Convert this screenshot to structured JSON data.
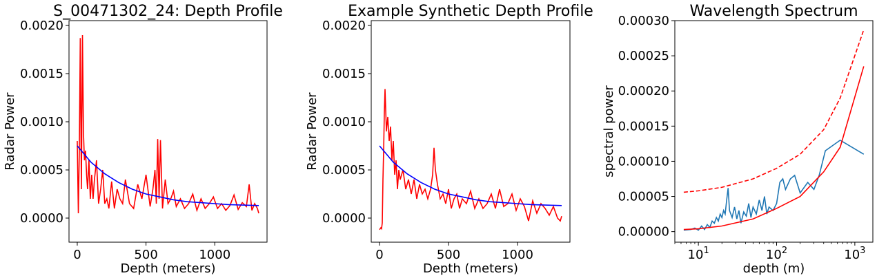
{
  "chart_data": [
    {
      "type": "line",
      "title": "S_00471302_24: Depth Profile",
      "xlabel": "Depth (meters)",
      "ylabel": "Radar Power",
      "xlim": [
        -60,
        1380
      ],
      "ylim": [
        -0.00025,
        0.00205
      ],
      "xticks": [
        0,
        500,
        1000
      ],
      "yticks": [
        0.0,
        0.0005,
        0.001,
        0.0015,
        0.002
      ],
      "ytick_labels": [
        "0.0000",
        "0.0005",
        "0.0010",
        "0.0015",
        "0.0020"
      ],
      "grid": false,
      "series": [
        {
          "color": "#ff0000",
          "x": [
            0,
            8,
            15,
            22,
            30,
            38,
            45,
            52,
            60,
            68,
            75,
            85,
            95,
            105,
            115,
            125,
            140,
            155,
            170,
            185,
            200,
            215,
            230,
            250,
            270,
            290,
            310,
            330,
            350,
            380,
            410,
            440,
            470,
            500,
            530,
            550,
            565,
            575,
            585,
            595,
            605,
            620,
            640,
            660,
            680,
            700,
            720,
            750,
            780,
            810,
            840,
            870,
            900,
            930,
            960,
            990,
            1020,
            1050,
            1080,
            1110,
            1140,
            1170,
            1200,
            1230,
            1250,
            1270,
            1290,
            1310,
            1320
          ],
          "y": [
            0.0008,
            5e-05,
            0.0007,
            0.00187,
            0.0003,
            0.0019,
            0.0009,
            0.0006,
            0.0007,
            0.00045,
            0.0003,
            0.0006,
            0.0002,
            0.00045,
            0.0002,
            0.0004,
            0.0006,
            0.00015,
            0.0003,
            0.0005,
            0.00015,
            0.0002,
            0.0001,
            0.00038,
            0.0001,
            0.0003,
            0.0002,
            0.00015,
            0.0004,
            0.00015,
            0.0001,
            0.00035,
            0.0002,
            0.00045,
            0.00012,
            0.0003,
            0.0005,
            0.00015,
            0.00082,
            0.0002,
            0.00081,
            0.0001,
            0.0004,
            0.00015,
            0.0002,
            0.00028,
            0.00012,
            0.0002,
            0.0001,
            0.00015,
            0.00025,
            8e-05,
            0.0002,
            0.0001,
            0.00015,
            0.00022,
            0.0001,
            0.00015,
            8e-05,
            0.00013,
            0.00024,
            9e-05,
            0.00016,
            0.00012,
            0.00035,
            8e-05,
            0.00015,
            0.0001,
            5e-05
          ]
        },
        {
          "color": "#0000ff",
          "x": [
            0,
            100,
            200,
            300,
            400,
            500,
            600,
            700,
            800,
            900,
            1000,
            1100,
            1200,
            1320
          ],
          "y": [
            0.00075,
            0.00058,
            0.00046,
            0.00037,
            0.0003,
            0.00025,
            0.00022,
            0.00019,
            0.00017,
            0.00016,
            0.00015,
            0.00014,
            0.000135,
            0.00013
          ]
        }
      ]
    },
    {
      "type": "line",
      "title": "Example Synthetic Depth Profile",
      "xlabel": "Depth (meters)",
      "ylabel": "Radar Power",
      "xlim": [
        -60,
        1380
      ],
      "ylim": [
        -0.00025,
        0.00205
      ],
      "xticks": [
        0,
        500,
        1000
      ],
      "yticks": [
        0.0,
        0.0005,
        0.001,
        0.0015,
        0.002
      ],
      "ytick_labels": [
        "0.0000",
        "0.0005",
        "0.0010",
        "0.0015",
        "0.0020"
      ],
      "grid": false,
      "series": [
        {
          "color": "#ff0000",
          "x": [
            0,
            10,
            15,
            20,
            25,
            30,
            35,
            40,
            50,
            60,
            70,
            80,
            90,
            100,
            110,
            120,
            130,
            140,
            150,
            170,
            190,
            210,
            230,
            250,
            270,
            290,
            310,
            330,
            350,
            370,
            385,
            395,
            405,
            420,
            440,
            460,
            480,
            500,
            520,
            540,
            560,
            580,
            600,
            630,
            660,
            690,
            720,
            750,
            780,
            810,
            840,
            870,
            900,
            930,
            960,
            990,
            1020,
            1050,
            1080,
            1110,
            1140,
            1170,
            1200,
            1230,
            1260,
            1290,
            1310,
            1320
          ],
          "y": [
            -0.00012,
            -0.0001,
            -0.00011,
            -5e-05,
            0.0004,
            0.0007,
            0.0011,
            0.00134,
            0.0009,
            0.00105,
            0.0008,
            0.00095,
            0.0006,
            0.0008,
            0.00045,
            0.0006,
            0.0003,
            0.0005,
            0.0004,
            0.0005,
            0.0003,
            0.0004,
            0.00025,
            0.0004,
            0.0002,
            0.00035,
            0.00025,
            0.0003,
            0.0002,
            0.0003,
            0.00045,
            0.00073,
            0.0005,
            0.00035,
            0.0002,
            0.00025,
            0.00015,
            0.0003,
            0.0001,
            0.0002,
            0.00025,
            0.0001,
            0.0002,
            0.00015,
            0.00028,
            0.0001,
            0.0002,
            0.0001,
            0.00015,
            0.00025,
            0.0001,
            0.0003,
            0.00012,
            0.00015,
            0.00025,
            8e-05,
            0.0002,
            0.00012,
            -3e-05,
            0.00018,
            5e-05,
            0.00015,
            0.0001,
            3e-05,
            0.00012,
            0.0,
            -3e-05,
            2e-05
          ]
        },
        {
          "color": "#0000ff",
          "x": [
            0,
            100,
            200,
            300,
            400,
            500,
            600,
            700,
            800,
            900,
            1000,
            1100,
            1200,
            1320
          ],
          "y": [
            0.00075,
            0.00058,
            0.00046,
            0.00037,
            0.0003,
            0.00025,
            0.00022,
            0.00019,
            0.00017,
            0.00016,
            0.00015,
            0.00014,
            0.000135,
            0.00013
          ]
        }
      ]
    },
    {
      "type": "line",
      "title": "Wavelength Spectrum",
      "xlabel": "depth (m)",
      "ylabel": "spectral power",
      "xscale": "log",
      "xlim": [
        5,
        1700
      ],
      "ylim": [
        -1.5e-05,
        0.0003
      ],
      "xticks": [
        10,
        100,
        1000
      ],
      "xtick_labels": [
        "10",
        "10",
        "10"
      ],
      "xtick_exponents": [
        "1",
        "2",
        "3"
      ],
      "yticks": [
        0.0,
        5e-05,
        0.0001,
        0.00015,
        0.0002,
        0.00025,
        0.0003
      ],
      "ytick_labels": [
        "0.00000",
        "0.00005",
        "0.00010",
        "0.00015",
        "0.00020",
        "0.00025",
        "0.00030"
      ],
      "grid": false,
      "series": [
        {
          "color": "#1f77b4",
          "x": [
            6.5,
            8,
            9,
            10,
            11,
            12,
            13,
            14,
            15,
            16,
            17,
            18,
            19,
            20,
            21,
            22,
            23,
            24,
            25,
            27,
            29,
            31,
            33,
            35,
            38,
            41,
            44,
            47,
            50,
            55,
            60,
            65,
            70,
            75,
            80,
            90,
            100,
            110,
            120,
            130,
            150,
            170,
            200,
            250,
            300,
            350,
            420,
            650,
            1300
          ],
          "y": [
            2e-06,
            3e-06,
            5e-06,
            2e-06,
            8e-06,
            3e-06,
            1e-05,
            6e-06,
            1.5e-05,
            1.2e-05,
            2e-05,
            1.5e-05,
            2.5e-05,
            2e-05,
            3e-05,
            2.5e-05,
            4.5e-05,
            6.2e-05,
            3e-05,
            2e-05,
            3.5e-05,
            1.8e-05,
            3e-05,
            1.2e-05,
            2.8e-05,
            2.2e-05,
            4e-05,
            2e-05,
            3.5e-05,
            2.5e-05,
            4.5e-05,
            3e-05,
            5e-05,
            2.5e-05,
            3.5e-05,
            3e-05,
            4e-05,
            7e-05,
            7.5e-05,
            6e-05,
            7.5e-05,
            8e-05,
            5.5e-05,
            7e-05,
            6e-05,
            8e-05,
            0.000115,
            0.00013,
            0.00011
          ]
        },
        {
          "color": "#ff0000",
          "x": [
            6.5,
            10,
            20,
            50,
            100,
            200,
            400,
            650,
            1300
          ],
          "y": [
            3e-06,
            4e-06,
            8e-06,
            1.8e-05,
            3.3e-05,
            5e-05,
            8.5e-05,
            0.00012,
            0.000235
          ]
        },
        {
          "color": "#ff0000",
          "dashed": true,
          "x": [
            6.5,
            10,
            20,
            50,
            100,
            200,
            400,
            650,
            1300
          ],
          "y": [
            5.6e-05,
            5.8e-05,
            6.3e-05,
            7.5e-05,
            9e-05,
            0.00011,
            0.000145,
            0.00019,
            0.000287
          ]
        }
      ]
    }
  ]
}
